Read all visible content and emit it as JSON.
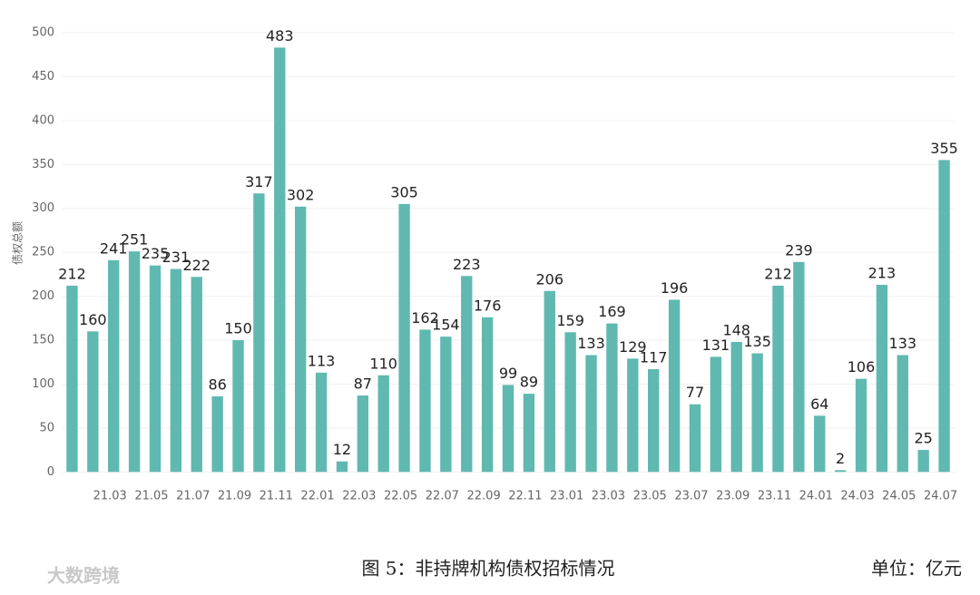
{
  "chart_data": {
    "type": "bar",
    "title": "图 5：非持牌机构债权招标情况",
    "unit_note": "单位：亿元",
    "y_label": "债权总额",
    "watermark": "大数跨境",
    "color": "#5fb9b1",
    "categories": [
      null,
      null,
      "21.03",
      null,
      "21.05",
      null,
      "21.07",
      null,
      "21.09",
      null,
      "21.11",
      null,
      "22.01",
      null,
      "22.03",
      null,
      "22.05",
      null,
      "22.07",
      null,
      "22.09",
      null,
      "22.11",
      null,
      "23.01",
      null,
      "23.03",
      null,
      "23.05",
      null,
      "23.07",
      null,
      "23.09",
      null,
      "23.11",
      null,
      "24.01",
      null,
      "24.03",
      null,
      "24.05",
      null,
      "24.07"
    ],
    "values": [
      212,
      160,
      241,
      251,
      235,
      231,
      222,
      86,
      150,
      317,
      483,
      302,
      113,
      12,
      87,
      110,
      305,
      162,
      154,
      223,
      176,
      99,
      89,
      206,
      159,
      133,
      169,
      129,
      117,
      196,
      77,
      131,
      148,
      135,
      212,
      239,
      64,
      2,
      106,
      213,
      133,
      25,
      355
    ],
    "ylim": [
      -10,
      500
    ],
    "yticks": [
      0,
      50,
      100,
      150,
      200,
      250,
      300,
      350,
      400,
      450,
      500
    ],
    "grid": true
  }
}
